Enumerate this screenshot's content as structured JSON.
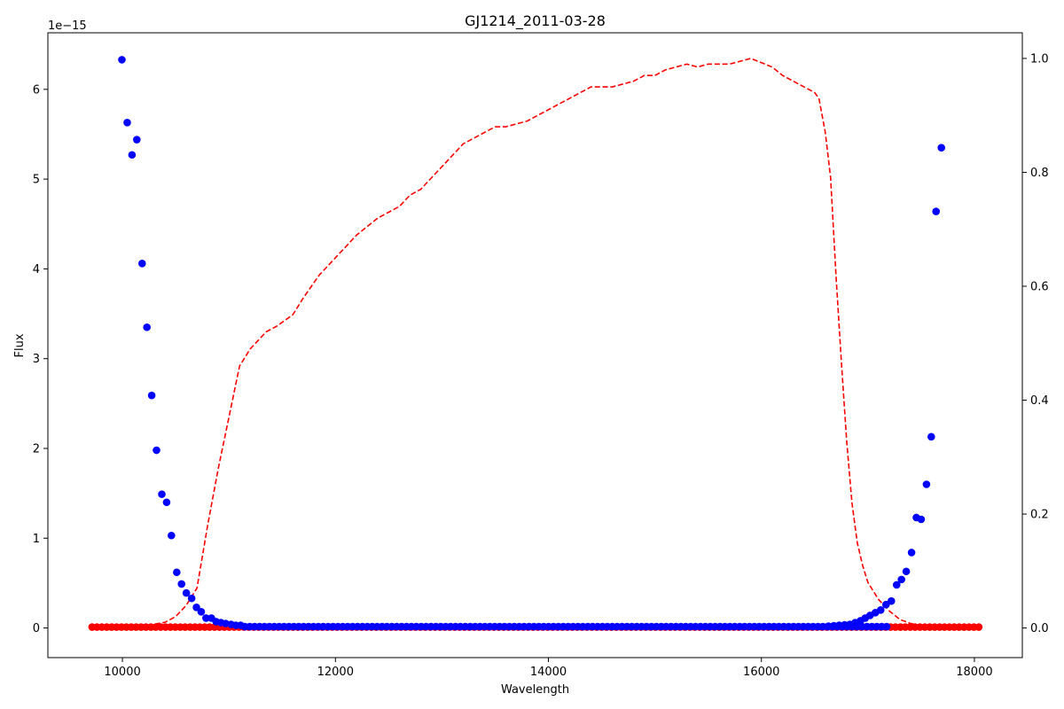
{
  "chart_data": {
    "type": "scatter",
    "title": "GJ1214_2011-03-28",
    "xlabel": "Wavelength",
    "ylabel": "Flux",
    "y_offset_label": "1e−15",
    "xlim": [
      9300,
      18450
    ],
    "ylim": [
      -0.33,
      6.63
    ],
    "y2lim": [
      -0.052,
      1.045
    ],
    "x_ticks": [
      10000,
      12000,
      14000,
      16000,
      18000
    ],
    "x_tick_labels": [
      "10000",
      "12000",
      "14000",
      "16000",
      "18000"
    ],
    "y_ticks": [
      0,
      1,
      2,
      3,
      4,
      5,
      6
    ],
    "y_tick_labels": [
      "0",
      "1",
      "2",
      "3",
      "4",
      "5",
      "6"
    ],
    "y2_ticks": [
      0.0,
      0.2,
      0.4,
      0.6,
      0.8,
      1.0
    ],
    "y2_tick_labels": [
      "0.0",
      "0.2",
      "0.4",
      "0.6",
      "0.8",
      "1.0"
    ],
    "grid": false,
    "colors": {
      "blue": "#0000ff",
      "red": "#ff0000"
    },
    "series": [
      {
        "kind": "scatter",
        "color": "#0000ff",
        "axis": "left",
        "x": [
          9995,
          10045,
          10090,
          10135,
          10185,
          10230,
          10275,
          10320,
          10370,
          10415,
          10460,
          10510,
          10555,
          10600,
          10650,
          10695,
          10740,
          10785,
          10835,
          10880,
          10925,
          10970,
          11020,
          11065,
          11110,
          17220,
          17270,
          17315,
          17360,
          17410,
          17455,
          17500,
          17550,
          17595,
          17640,
          17690
        ],
        "y": [
          6.33,
          5.63,
          5.27,
          5.44,
          4.06,
          3.35,
          2.59,
          1.98,
          1.49,
          1.4,
          1.03,
          0.62,
          0.49,
          0.39,
          0.33,
          0.23,
          0.18,
          0.11,
          0.11,
          0.07,
          0.06,
          0.05,
          0.04,
          0.03,
          0.03,
          0.3,
          0.48,
          0.54,
          0.63,
          0.84,
          1.23,
          1.21,
          1.6,
          2.13,
          4.64,
          5.35
        ],
        "baseline": {
          "x_start": 11150,
          "x_end": 17180,
          "step": 46,
          "y": 0.015
        },
        "rise_tail": [
          {
            "x": 16630,
            "y": 0.02
          },
          {
            "x": 16680,
            "y": 0.025
          },
          {
            "x": 16730,
            "y": 0.03
          },
          {
            "x": 16780,
            "y": 0.035
          },
          {
            "x": 16830,
            "y": 0.04
          },
          {
            "x": 16880,
            "y": 0.06
          },
          {
            "x": 16930,
            "y": 0.08
          },
          {
            "x": 16975,
            "y": 0.11
          },
          {
            "x": 17020,
            "y": 0.14
          },
          {
            "x": 17070,
            "y": 0.17
          },
          {
            "x": 17120,
            "y": 0.2
          },
          {
            "x": 17170,
            "y": 0.26
          }
        ]
      },
      {
        "kind": "scatter",
        "color": "#ff0000",
        "axis": "left",
        "baseline": {
          "x_start": 9715,
          "x_end": 18060,
          "step": 46,
          "y": 0.01
        }
      },
      {
        "kind": "line",
        "style": "dashed",
        "color": "#ff0000",
        "axis": "right",
        "x": [
          9720,
          10000,
          10200,
          10400,
          10500,
          10600,
          10700,
          10800,
          10900,
          11000,
          11100,
          11200,
          11350,
          11450,
          11600,
          11700,
          11850,
          12000,
          12200,
          12400,
          12600,
          12700,
          12800,
          12900,
          13000,
          13100,
          13200,
          13300,
          13400,
          13500,
          13600,
          13800,
          13900,
          14000,
          14100,
          14200,
          14300,
          14400,
          14600,
          14800,
          14900,
          15000,
          15100,
          15200,
          15300,
          15400,
          15500,
          15700,
          15800,
          15900,
          16100,
          16200,
          16300,
          16400,
          16500,
          16540,
          16600,
          16650,
          16700,
          16750,
          16800,
          16850,
          16900,
          16950,
          17000,
          17100,
          17200,
          17300,
          17400,
          17500,
          17550
        ],
        "y": [
          0.0,
          0.0,
          0.003,
          0.01,
          0.02,
          0.04,
          0.07,
          0.18,
          0.28,
          0.37,
          0.46,
          0.49,
          0.52,
          0.53,
          0.55,
          0.58,
          0.62,
          0.65,
          0.69,
          0.72,
          0.74,
          0.76,
          0.77,
          0.79,
          0.81,
          0.83,
          0.85,
          0.86,
          0.87,
          0.88,
          0.88,
          0.89,
          0.9,
          0.91,
          0.92,
          0.93,
          0.94,
          0.95,
          0.95,
          0.96,
          0.97,
          0.97,
          0.98,
          0.985,
          0.99,
          0.985,
          0.99,
          0.99,
          0.995,
          1.0,
          0.985,
          0.97,
          0.96,
          0.95,
          0.94,
          0.93,
          0.87,
          0.79,
          0.62,
          0.47,
          0.33,
          0.22,
          0.15,
          0.11,
          0.08,
          0.05,
          0.03,
          0.015,
          0.008,
          0.004,
          0.002
        ]
      }
    ]
  }
}
